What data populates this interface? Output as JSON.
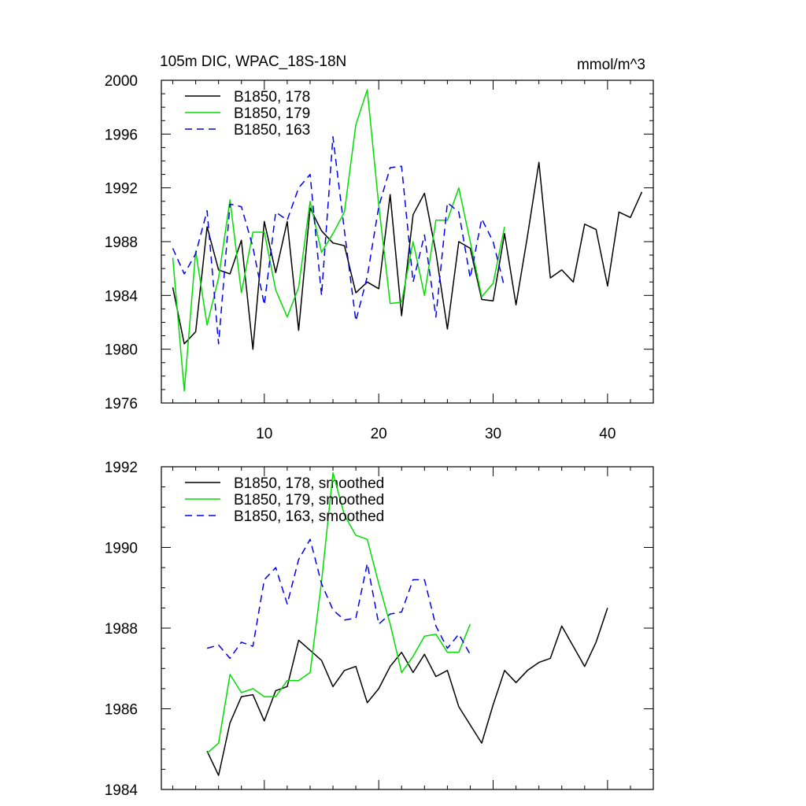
{
  "chart_data": [
    {
      "type": "line",
      "title": "105m DIC, WPAC_18S-18N",
      "units": "mmol/m^3",
      "xlim": [
        1,
        44
      ],
      "ylim": [
        1976,
        2000
      ],
      "yticks": [
        1976,
        1980,
        1984,
        1988,
        1992,
        1996,
        2000
      ],
      "xticks": [
        10,
        20,
        30,
        40
      ],
      "series": [
        {
          "name": "B1850, 178",
          "color": "#000000",
          "dash": false,
          "x": [
            2,
            3,
            4,
            5,
            6,
            7,
            8,
            9,
            10,
            11,
            12,
            13,
            14,
            15,
            16,
            17,
            18,
            19,
            20,
            21,
            22,
            23,
            24,
            25,
            26,
            27,
            28,
            29,
            30,
            31,
            32,
            33,
            34,
            35,
            36,
            37,
            38,
            39,
            40,
            41,
            42,
            43
          ],
          "values": [
            1984.6,
            1980.4,
            1981.3,
            1989.1,
            1985.9,
            1985.6,
            1988.1,
            1980.0,
            1989.5,
            1985.7,
            1989.5,
            1981.4,
            1990.5,
            1988.8,
            1987.9,
            1987.7,
            1984.2,
            1985.0,
            1984.5,
            1991.5,
            1982.5,
            1990.0,
            1991.6,
            1987.2,
            1981.5,
            1988.0,
            1987.5,
            1983.7,
            1983.6,
            1988.6,
            1983.3,
            1988.4,
            1993.9,
            1985.3,
            1985.9,
            1985.0,
            1989.3,
            1988.9,
            1984.7,
            1990.2,
            1989.8,
            1991.7
          ]
        },
        {
          "name": "B1850, 179",
          "color": "#00dd00",
          "dash": false,
          "x": [
            2,
            3,
            4,
            5,
            6,
            7,
            8,
            9,
            10,
            11,
            12,
            13,
            14,
            15,
            16,
            17,
            18,
            19,
            20,
            21,
            22,
            23,
            24,
            25,
            26,
            27,
            28,
            29,
            30,
            31
          ],
          "values": [
            1986.8,
            1976.9,
            1987.3,
            1981.8,
            1985.3,
            1991.1,
            1984.2,
            1988.7,
            1988.7,
            1984.4,
            1982.4,
            1984.6,
            1991.0,
            1987.2,
            1988.6,
            1990.2,
            1996.7,
            1999.3,
            1990.7,
            1983.4,
            1983.5,
            1988.0,
            1984.0,
            1989.6,
            1989.6,
            1992.0,
            1988.0,
            1983.9,
            1984.9,
            1989.1
          ]
        },
        {
          "name": "B1850, 163",
          "color": "#0000ee",
          "dash": true,
          "x": [
            2,
            3,
            4,
            5,
            6,
            7,
            8,
            9,
            10,
            11,
            12,
            13,
            14,
            15,
            16,
            17,
            18,
            19,
            20,
            21,
            22,
            23,
            24,
            25,
            26,
            27,
            28,
            29,
            30,
            31
          ],
          "values": [
            1987.5,
            1985.6,
            1987.1,
            1990.3,
            1980.4,
            1990.8,
            1990.6,
            1987.6,
            1983.3,
            1990.2,
            1989.6,
            1992.0,
            1993.0,
            1984.0,
            1995.8,
            1988.8,
            1982.1,
            1985.4,
            1990.6,
            1993.5,
            1993.6,
            1985.0,
            1988.5,
            1982.4,
            1990.9,
            1990.2,
            1985.3,
            1989.7,
            1988.0,
            1984.6
          ]
        }
      ]
    },
    {
      "type": "line",
      "title": "",
      "xlim": [
        1,
        44
      ],
      "ylim": [
        1984,
        1992
      ],
      "yticks": [
        1984,
        1986,
        1988,
        1990,
        1992
      ],
      "xticks": [
        10,
        20,
        30,
        40
      ],
      "series": [
        {
          "name": "B1850, 178, smoothed",
          "color": "#000000",
          "dash": false,
          "x": [
            5,
            6,
            7,
            8,
            9,
            10,
            11,
            12,
            13,
            14,
            15,
            16,
            17,
            18,
            19,
            20,
            21,
            22,
            23,
            24,
            25,
            26,
            27,
            28,
            29,
            30,
            31,
            32,
            33,
            34,
            35,
            36,
            37,
            38,
            39,
            40
          ],
          "values": [
            1984.95,
            1984.35,
            1985.65,
            1986.3,
            1986.35,
            1985.7,
            1986.45,
            1986.55,
            1987.7,
            1987.45,
            1987.2,
            1986.55,
            1986.95,
            1987.05,
            1986.15,
            1986.5,
            1987.05,
            1987.4,
            1986.9,
            1987.35,
            1986.8,
            1986.95,
            1986.05,
            1985.6,
            1985.15,
            1986.1,
            1986.95,
            1986.65,
            1986.95,
            1987.15,
            1987.25,
            1988.05,
            1987.55,
            1987.05,
            1987.65,
            1988.5
          ]
        },
        {
          "name": "B1850, 179, smoothed",
          "color": "#00dd00",
          "dash": false,
          "x": [
            5,
            6,
            7,
            8,
            9,
            10,
            11,
            12,
            13,
            14,
            15,
            16,
            17,
            18,
            19,
            20,
            21,
            22,
            23,
            24,
            25,
            26,
            27,
            28
          ],
          "values": [
            1984.9,
            1985.15,
            1986.85,
            1986.4,
            1986.5,
            1986.3,
            1986.3,
            1986.7,
            1986.7,
            1986.9,
            1989.15,
            1991.85,
            1990.8,
            1990.3,
            1990.2,
            1989.1,
            1988.1,
            1986.9,
            1987.3,
            1987.8,
            1987.85,
            1987.4,
            1987.4,
            1988.1
          ]
        },
        {
          "name": "B1850, 163, smoothed",
          "color": "#0000ee",
          "dash": true,
          "x": [
            5,
            6,
            7,
            8,
            9,
            10,
            11,
            12,
            13,
            14,
            15,
            16,
            17,
            18,
            19,
            20,
            21,
            22,
            23,
            24,
            25,
            26,
            27,
            28
          ],
          "values": [
            1987.5,
            1987.58,
            1987.25,
            1987.65,
            1987.55,
            1989.2,
            1989.5,
            1988.6,
            1989.7,
            1990.2,
            1989.1,
            1988.45,
            1988.2,
            1988.25,
            1989.6,
            1988.1,
            1988.35,
            1988.4,
            1989.2,
            1989.2,
            1988.05,
            1987.5,
            1987.85,
            1987.35
          ]
        }
      ]
    }
  ]
}
